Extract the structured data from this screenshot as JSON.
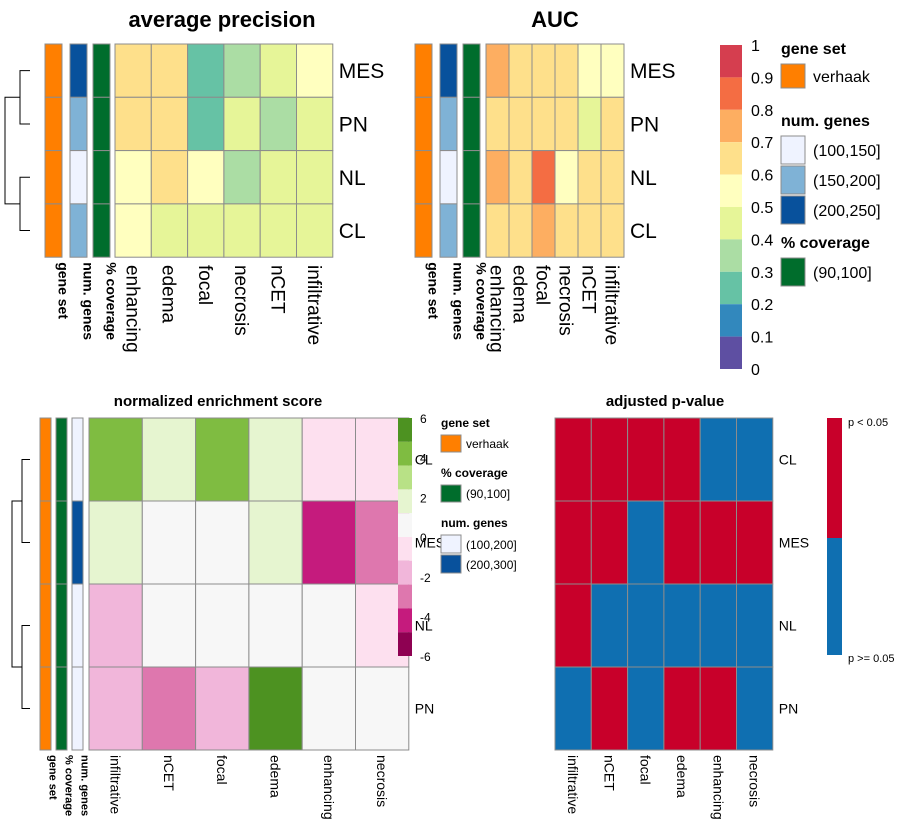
{
  "chart_data": [
    {
      "type": "heatmap",
      "title": "average precision",
      "rows": [
        "MES",
        "PN",
        "NL",
        "CL"
      ],
      "columns": [
        "enhancing",
        "edema",
        "focal",
        "necrosis",
        "nCET",
        "infiltrative"
      ],
      "values": [
        [
          0.65,
          0.65,
          0.25,
          0.35,
          0.45,
          0.55
        ],
        [
          0.65,
          0.65,
          0.25,
          0.45,
          0.35,
          0.45
        ],
        [
          0.55,
          0.65,
          0.55,
          0.35,
          0.45,
          0.45
        ],
        [
          0.55,
          0.45,
          0.45,
          0.45,
          0.45,
          0.45
        ]
      ],
      "annotation_columns": [
        "gene set",
        "num. genes",
        "% coverage"
      ],
      "annotations": {
        "gene set": [
          "verhaak",
          "verhaak",
          "verhaak",
          "verhaak"
        ],
        "num. genes": [
          "(200,250]",
          "(150,200]",
          "(100,150]",
          "(150,200]"
        ],
        "% coverage": [
          "(90,100]",
          "(90,100]",
          "(90,100]",
          "(90,100]"
        ]
      }
    },
    {
      "type": "heatmap",
      "title": "AUC",
      "rows": [
        "MES",
        "PN",
        "NL",
        "CL"
      ],
      "columns": [
        "enhancing",
        "edema",
        "focal",
        "necrosis",
        "nCET",
        "infiltrative"
      ],
      "values": [
        [
          0.75,
          0.65,
          0.65,
          0.65,
          0.55,
          0.55
        ],
        [
          0.65,
          0.65,
          0.65,
          0.65,
          0.45,
          0.65
        ],
        [
          0.75,
          0.65,
          0.85,
          0.55,
          0.65,
          0.65
        ],
        [
          0.65,
          0.65,
          0.75,
          0.65,
          0.65,
          0.65
        ]
      ],
      "annotation_columns": [
        "gene set",
        "num. genes",
        "% coverage"
      ],
      "annotations": {
        "gene set": [
          "verhaak",
          "verhaak",
          "verhaak",
          "verhaak"
        ],
        "num. genes": [
          "(200,250]",
          "(150,200]",
          "(100,150]",
          "(150,200]"
        ],
        "% coverage": [
          "(90,100]",
          "(90,100]",
          "(90,100]",
          "(90,100]"
        ]
      },
      "legend": {
        "ticks": [
          "1",
          "0.9",
          "0.8",
          "0.7",
          "0.6",
          "0.5",
          "0.4",
          "0.3",
          "0.2",
          "0.1",
          "0"
        ],
        "colors": [
          "#d53e4f",
          "#f46d43",
          "#fdae61",
          "#fee08b",
          "#ffffbf",
          "#e6f598",
          "#abdda4",
          "#66c2a5",
          "#3288bd",
          "#5e4fa2"
        ]
      },
      "annotation_legend": {
        "gene_set": {
          "title": "gene set",
          "items": [
            {
              "label": "verhaak",
              "color": "#ff7f00"
            }
          ]
        },
        "num_genes": {
          "title": "num. genes",
          "items": [
            {
              "label": "(100,150]",
              "color": "#eff3ff"
            },
            {
              "label": "(150,200]",
              "color": "#7fb2d6"
            },
            {
              "label": "(200,250]",
              "color": "#08519c"
            }
          ]
        },
        "coverage": {
          "title": "% coverage",
          "items": [
            {
              "label": "(90,100]",
              "color": "#006d2c"
            }
          ]
        }
      }
    },
    {
      "type": "heatmap",
      "title": "normalized enrichment score",
      "rows": [
        "CL",
        "MES",
        "NL",
        "PN"
      ],
      "columns": [
        "infiltrative",
        "nCET",
        "focal",
        "edema",
        "enhancing",
        "necrosis"
      ],
      "values": [
        [
          4,
          2,
          4,
          2,
          0,
          -1
        ],
        [
          2,
          1,
          1,
          2,
          -4,
          -3
        ],
        [
          -2,
          1,
          1,
          1,
          1,
          0
        ],
        [
          -2,
          -3,
          -2,
          6,
          1,
          1
        ]
      ],
      "annotation_columns": [
        "gene set",
        "% coverage",
        "num. genes"
      ],
      "annotations": {
        "gene set": [
          "verhaak",
          "verhaak",
          "verhaak",
          "verhaak"
        ],
        "% coverage": [
          "(90,100]",
          "(90,100]",
          "(90,100]",
          "(90,100]"
        ],
        "num. genes": [
          "(100,200]",
          "(200,300]",
          "(100,200]",
          "(100,200]"
        ]
      },
      "legend": {
        "ticks": [
          "6",
          "4",
          "2",
          "0",
          "-2",
          "-4",
          "-6"
        ],
        "colors": [
          "#4d9221",
          "#7fbc41",
          "#b8e186",
          "#e6f5d0",
          "#f7f7f7",
          "#fde0ef",
          "#f1b6da",
          "#de77ae",
          "#c51b7d",
          "#8e0152"
        ]
      },
      "annotation_legend": {
        "gene_set": {
          "title": "gene set",
          "items": [
            {
              "label": "verhaak",
              "color": "#ff7f00"
            }
          ]
        },
        "coverage": {
          "title": "% coverage",
          "items": [
            {
              "label": "(90,100]",
              "color": "#006d2c"
            }
          ]
        },
        "num_genes": {
          "title": "num. genes",
          "items": [
            {
              "label": "(100,200]",
              "color": "#eff3ff"
            },
            {
              "label": "(200,300]",
              "color": "#08519c"
            }
          ]
        }
      }
    },
    {
      "type": "heatmap",
      "title": "adjusted p-value",
      "rows": [
        "CL",
        "MES",
        "NL",
        "PN"
      ],
      "columns": [
        "infiltrative",
        "nCET",
        "focal",
        "edema",
        "enhancing",
        "necrosis"
      ],
      "values": [
        [
          "p < 0.05",
          "p < 0.05",
          "p < 0.05",
          "p < 0.05",
          "p >= 0.05",
          "p >= 0.05"
        ],
        [
          "p < 0.05",
          "p < 0.05",
          "p >= 0.05",
          "p < 0.05",
          "p < 0.05",
          "p < 0.05"
        ],
        [
          "p < 0.05",
          "p >= 0.05",
          "p >= 0.05",
          "p >= 0.05",
          "p >= 0.05",
          "p >= 0.05"
        ],
        [
          "p >= 0.05",
          "p < 0.05",
          "p >= 0.05",
          "p < 0.05",
          "p < 0.05",
          "p >= 0.05"
        ]
      ],
      "legend": {
        "items": [
          {
            "label": "p < 0.05",
            "color": "#c8002a"
          },
          {
            "label": "p >= 0.05",
            "color": "#0f6fb1"
          }
        ]
      }
    }
  ]
}
